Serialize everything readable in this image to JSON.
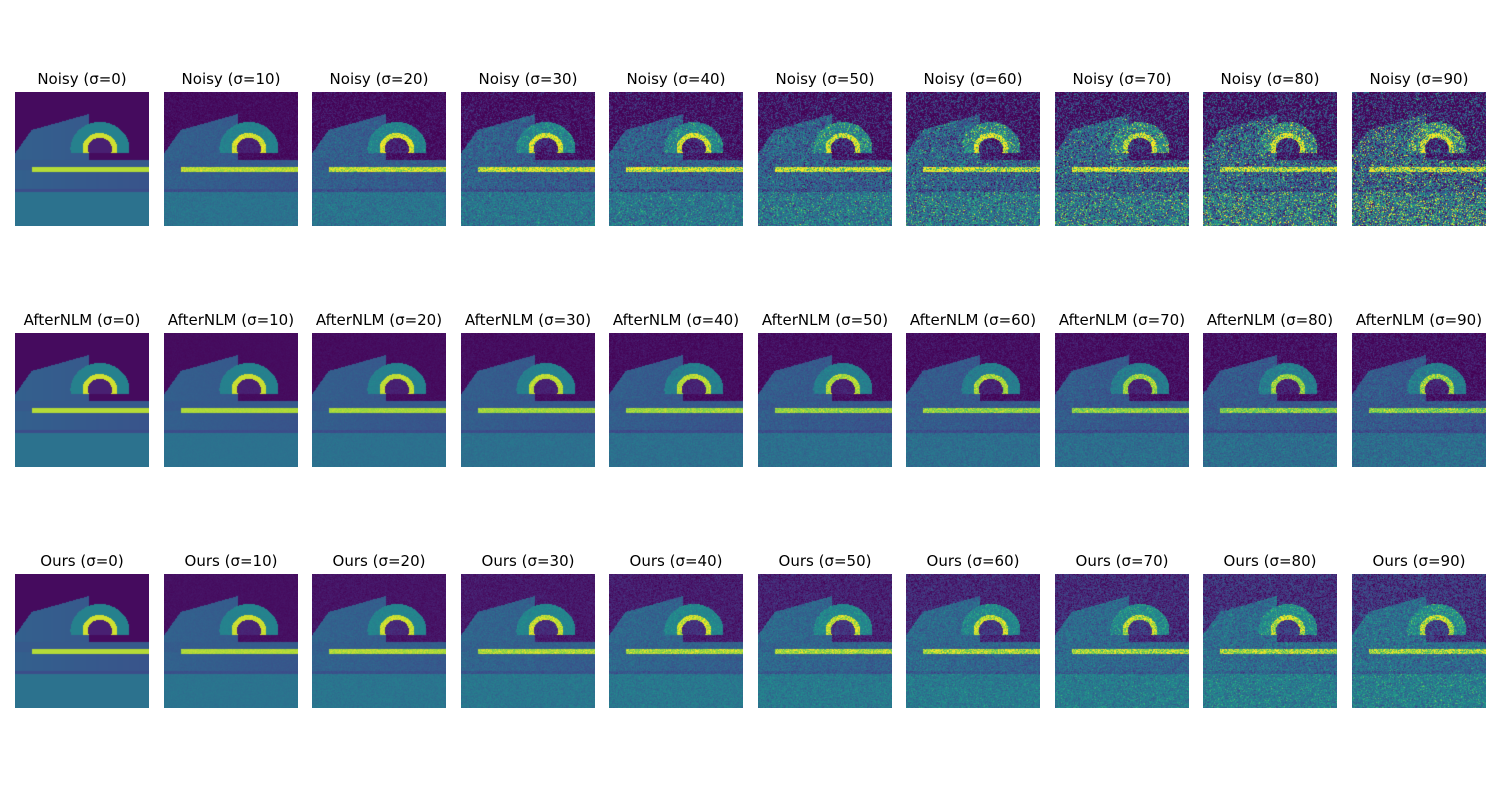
{
  "figure": {
    "rows": [
      {
        "method": "Noisy",
        "titles": [
          "Noisy (σ=0)",
          "Noisy (σ=10)",
          "Noisy (σ=20)",
          "Noisy (σ=30)",
          "Noisy (σ=40)",
          "Noisy (σ=50)",
          "Noisy (σ=60)",
          "Noisy (σ=70)",
          "Noisy (σ=80)",
          "Noisy (σ=90)"
        ],
        "sigmas": [
          0,
          10,
          20,
          30,
          40,
          50,
          60,
          70,
          80,
          90
        ]
      },
      {
        "method": "AfterNLM",
        "titles": [
          "AfterNLM (σ=0)",
          "AfterNLM (σ=10)",
          "AfterNLM (σ=20)",
          "AfterNLM (σ=30)",
          "AfterNLM (σ=40)",
          "AfterNLM (σ=50)",
          "AfterNLM (σ=60)",
          "AfterNLM (σ=70)",
          "AfterNLM (σ=80)",
          "AfterNLM (σ=90)"
        ],
        "sigmas": [
          0,
          10,
          20,
          30,
          40,
          50,
          60,
          70,
          80,
          90
        ]
      },
      {
        "method": "Ours",
        "titles": [
          "Ours (σ=0)",
          "Ours (σ=10)",
          "Ours (σ=20)",
          "Ours (σ=30)",
          "Ours (σ=40)",
          "Ours (σ=50)",
          "Ours (σ=60)",
          "Ours (σ=70)",
          "Ours (σ=80)",
          "Ours (σ=90)"
        ],
        "sigmas": [
          0,
          10,
          20,
          30,
          40,
          50,
          60,
          70,
          80,
          90
        ]
      }
    ],
    "colormap": "viridis",
    "colors": {
      "background": "#ffffff",
      "title_text": "#000000"
    }
  }
}
